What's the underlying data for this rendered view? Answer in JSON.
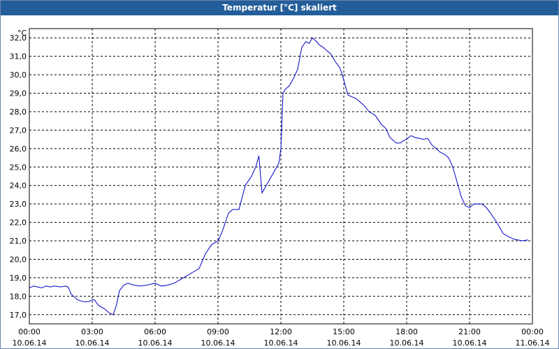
{
  "window": {
    "title": "Temperatur [°C] skaliert"
  },
  "colors": {
    "titlebar": "#245e9a",
    "line": "#0000c8",
    "grid": "#000000"
  },
  "chart_data": {
    "type": "line",
    "title": "Temperatur [°C] skaliert",
    "xlabel": "",
    "ylabel": "",
    "y_unit": "°C",
    "grid": true,
    "xlim": [
      "10.06.14 00:00",
      "11.06.14 00:00"
    ],
    "ylim": [
      16.5,
      32.5
    ],
    "y_ticks": [
      "17,0",
      "18,0",
      "19,0",
      "20,0",
      "21,0",
      "22,0",
      "23,0",
      "24,0",
      "25,0",
      "26,0",
      "27,0",
      "28,0",
      "29,0",
      "30,0",
      "31,0",
      "32,0"
    ],
    "y_tick_values": [
      17,
      18,
      19,
      20,
      21,
      22,
      23,
      24,
      25,
      26,
      27,
      28,
      29,
      30,
      31,
      32
    ],
    "x_ticks": [
      {
        "time": "00:00",
        "date": "10.06.14"
      },
      {
        "time": "03:00",
        "date": "10.06.14"
      },
      {
        "time": "06:00",
        "date": "10.06.14"
      },
      {
        "time": "09:00",
        "date": "10.06.14"
      },
      {
        "time": "12:00",
        "date": "10.06.14"
      },
      {
        "time": "15:00",
        "date": "10.06.14"
      },
      {
        "time": "18:00",
        "date": "10.06.14"
      },
      {
        "time": "21:00",
        "date": "10.06.14"
      },
      {
        "time": "00:00",
        "date": "11.06.14"
      }
    ],
    "x_tick_hours": [
      0,
      3,
      6,
      9,
      12,
      15,
      18,
      21,
      24
    ],
    "series": [
      {
        "x": [
          0,
          0.2,
          0.4,
          0.6,
          0.8,
          1.0,
          1.2,
          1.5,
          1.7,
          1.85,
          2.0,
          2.3,
          2.6,
          2.8,
          3.0,
          3.1,
          3.3,
          3.6,
          3.8,
          4.0,
          4.15,
          4.3,
          4.5,
          4.7,
          5.0,
          5.3,
          5.6,
          6.0,
          6.3,
          6.6,
          6.9,
          7.2,
          7.5,
          7.8,
          8.1,
          8.4,
          8.7,
          9.0,
          9.2,
          9.5,
          9.7,
          10.0,
          10.3,
          10.6,
          10.8,
          10.95,
          11.1,
          11.3,
          11.6,
          11.9,
          12.0,
          12.1,
          12.2,
          12.4,
          12.6,
          12.8,
          13.0,
          13.2,
          13.35,
          13.5,
          13.6,
          13.7,
          13.85,
          14.0,
          14.2,
          14.4,
          14.6,
          14.8,
          14.9,
          15.0,
          15.2,
          15.4,
          15.6,
          15.8,
          16.0,
          16.2,
          16.5,
          16.8,
          17.0,
          17.2,
          17.5,
          17.7,
          17.8,
          18.0,
          18.2,
          18.4,
          18.6,
          18.8,
          19.0,
          19.2,
          19.4,
          19.6,
          19.8,
          20.0,
          20.2,
          20.4,
          20.6,
          20.8,
          21.0,
          21.2,
          21.4,
          21.6,
          21.8,
          22.0,
          22.3,
          22.6,
          22.9,
          23.1,
          23.3,
          23.5,
          23.8
        ],
        "y": [
          18.45,
          18.55,
          18.5,
          18.45,
          18.55,
          18.5,
          18.55,
          18.5,
          18.55,
          18.5,
          18.1,
          17.8,
          17.7,
          17.7,
          17.8,
          17.8,
          17.5,
          17.3,
          17.1,
          17.0,
          17.5,
          18.3,
          18.6,
          18.7,
          18.6,
          18.55,
          18.6,
          18.7,
          18.55,
          18.6,
          18.7,
          18.9,
          19.1,
          19.3,
          19.5,
          20.3,
          20.8,
          21.0,
          21.5,
          22.5,
          22.7,
          22.7,
          24.0,
          24.5,
          25.0,
          25.6,
          23.6,
          24.0,
          24.6,
          25.2,
          26.0,
          29.0,
          29.2,
          29.4,
          29.8,
          30.3,
          31.5,
          31.8,
          31.7,
          32.0,
          31.9,
          31.8,
          31.6,
          31.5,
          31.3,
          31.1,
          30.7,
          30.4,
          30.1,
          29.7,
          28.9,
          28.8,
          28.7,
          28.5,
          28.3,
          28.0,
          27.8,
          27.3,
          27.1,
          26.6,
          26.3,
          26.3,
          26.4,
          26.5,
          26.7,
          26.6,
          26.55,
          26.5,
          26.55,
          26.2,
          26.0,
          25.8,
          25.7,
          25.5,
          25.0,
          24.2,
          23.4,
          22.9,
          22.8,
          23.0,
          23.0,
          23.0,
          22.8,
          22.5,
          22.0,
          21.4,
          21.2,
          21.1,
          21.05,
          21.0,
          21.05
        ]
      }
    ]
  }
}
